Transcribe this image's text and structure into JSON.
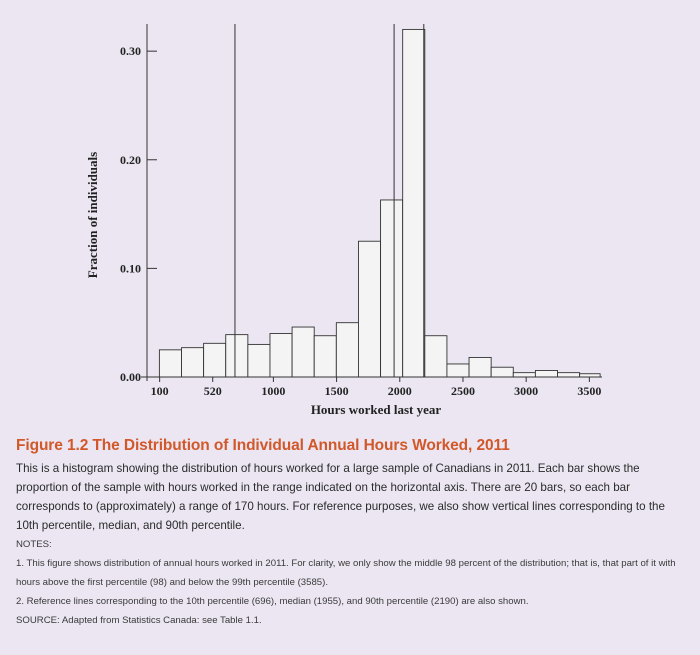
{
  "chart_data": {
    "type": "bar",
    "title": "",
    "xlabel": "Hours worked last year",
    "ylabel": "Fraction of individuals",
    "xlim": [
      0,
      3600
    ],
    "ylim": [
      0,
      0.325
    ],
    "x_ticks": [
      {
        "value": 100,
        "label": "100"
      },
      {
        "value": 520,
        "label": "520"
      },
      {
        "value": 1000,
        "label": "1000"
      },
      {
        "value": 1500,
        "label": "1500"
      },
      {
        "value": 2000,
        "label": "2000"
      },
      {
        "value": 2500,
        "label": "2500"
      },
      {
        "value": 3000,
        "label": "3000"
      },
      {
        "value": 3500,
        "label": "3500"
      }
    ],
    "y_ticks": [
      {
        "value": 0,
        "label": "0.00"
      },
      {
        "value": 0.1,
        "label": "0.10"
      },
      {
        "value": 0.2,
        "label": "0.20"
      },
      {
        "value": 0.3,
        "label": "0.30"
      }
    ],
    "bins": [
      {
        "start": 98,
        "end": 273,
        "value": 0.025
      },
      {
        "start": 273,
        "end": 448,
        "value": 0.027
      },
      {
        "start": 448,
        "end": 623,
        "value": 0.031
      },
      {
        "start": 623,
        "end": 798,
        "value": 0.039
      },
      {
        "start": 798,
        "end": 973,
        "value": 0.03
      },
      {
        "start": 973,
        "end": 1148,
        "value": 0.04
      },
      {
        "start": 1148,
        "end": 1323,
        "value": 0.046
      },
      {
        "start": 1323,
        "end": 1498,
        "value": 0.038
      },
      {
        "start": 1498,
        "end": 1673,
        "value": 0.05
      },
      {
        "start": 1673,
        "end": 1848,
        "value": 0.125
      },
      {
        "start": 1848,
        "end": 2023,
        "value": 0.163
      },
      {
        "start": 2023,
        "end": 2198,
        "value": 0.32
      },
      {
        "start": 2198,
        "end": 2373,
        "value": 0.038
      },
      {
        "start": 2373,
        "end": 2548,
        "value": 0.012
      },
      {
        "start": 2548,
        "end": 2723,
        "value": 0.018
      },
      {
        "start": 2723,
        "end": 2898,
        "value": 0.009
      },
      {
        "start": 2898,
        "end": 3073,
        "value": 0.004
      },
      {
        "start": 3073,
        "end": 3248,
        "value": 0.006
      },
      {
        "start": 3248,
        "end": 3423,
        "value": 0.004
      },
      {
        "start": 3423,
        "end": 3585,
        "value": 0.003
      }
    ],
    "reference_lines": [
      696,
      1955,
      2190
    ],
    "bar_fill": "#f4f4f4",
    "bar_stroke": "#333333",
    "grid": false,
    "legend": "none"
  },
  "caption": {
    "title": "Figure 1.2 The Distribution of Individual Annual Hours Worked, 2011",
    "body": "This is a histogram showing the distribution of hours worked for a large sample of Canadians in 2011. Each bar shows the proportion of the sample with hours worked in the range indicated on the horizontal axis. There are 20 bars, so each bar corresponds to (approximately) a range of 170 hours. For reference purposes, we also show vertical lines corresponding to the 10th percentile, median, and 90th percentile.",
    "notes_heading": "NOTES:",
    "note1": "1. This figure shows distribution of annual hours worked in 2011. For clarity, we only show the middle 98 percent of the distribution; that is, that part of it with hours above the first percentile (98) and below the 99th percentile (3585).",
    "note2": "2. Reference lines corresponding to the 10th percentile (696), median (1955), and 90th percentile (2190) are also shown.",
    "source": "SOURCE: Adapted from Statistics Canada: see Table 1.1."
  },
  "colors": {
    "background": "#ebe6f1",
    "title": "#d2582a",
    "text": "#2b2b2b"
  }
}
